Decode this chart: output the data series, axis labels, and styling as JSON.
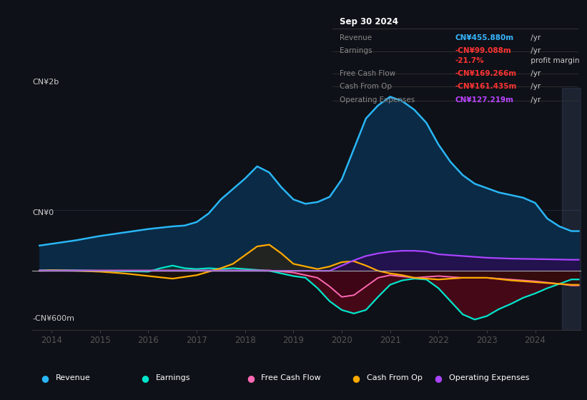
{
  "background_color": "#0e1117",
  "plot_bg_color": "#0e1117",
  "title_box": {
    "date": "Sep 30 2024",
    "rows": [
      {
        "label": "Revenue",
        "value": "CN¥455.880m",
        "value_color": "#38b6ff",
        "suffix": " /yr"
      },
      {
        "label": "Earnings",
        "value": "-CN¥99.088m",
        "value_color": "#ff3333",
        "suffix": " /yr"
      },
      {
        "label": "",
        "value": "-21.7%",
        "value_color": "#ff3333",
        "suffix": " profit margin"
      },
      {
        "label": "Free Cash Flow",
        "value": "-CN¥169.266m",
        "value_color": "#ff3333",
        "suffix": " /yr"
      },
      {
        "label": "Cash From Op",
        "value": "-CN¥161.435m",
        "value_color": "#ff3333",
        "suffix": " /yr"
      },
      {
        "label": "Operating Expenses",
        "value": "CN¥127.219m",
        "value_color": "#bb44ff",
        "suffix": " /yr"
      }
    ]
  },
  "y_label_top": "CN¥2b",
  "y_label_zero": "CN¥0",
  "y_label_bottom": "-CN¥600m",
  "ylim": [
    -680,
    2100
  ],
  "xlim": [
    2013.6,
    2024.95
  ],
  "x_ticks": [
    2014,
    2015,
    2016,
    2017,
    2018,
    2019,
    2020,
    2021,
    2022,
    2023,
    2024
  ],
  "revenue_color": "#29b6f6",
  "earnings_color": "#00e5cc",
  "fcf_color": "#ff69b4",
  "cashop_color": "#ffaa00",
  "opex_color": "#aa44ff",
  "legend": [
    {
      "label": "Revenue",
      "color": "#29b6f6"
    },
    {
      "label": "Earnings",
      "color": "#00e5cc"
    },
    {
      "label": "Free Cash Flow",
      "color": "#ff69b4"
    },
    {
      "label": "Cash From Op",
      "color": "#ffaa00"
    },
    {
      "label": "Operating Expenses",
      "color": "#aa44ff"
    }
  ],
  "revenue": {
    "x": [
      2013.75,
      2014.0,
      2014.5,
      2015.0,
      2015.5,
      2016.0,
      2016.5,
      2016.75,
      2017.0,
      2017.25,
      2017.5,
      2017.75,
      2018.0,
      2018.25,
      2018.5,
      2018.75,
      2019.0,
      2019.25,
      2019.5,
      2019.75,
      2020.0,
      2020.25,
      2020.5,
      2020.75,
      2021.0,
      2021.25,
      2021.5,
      2021.75,
      2022.0,
      2022.25,
      2022.5,
      2022.75,
      2023.0,
      2023.25,
      2023.5,
      2023.75,
      2024.0,
      2024.25,
      2024.5,
      2024.75,
      2024.9
    ],
    "y": [
      290,
      310,
      350,
      400,
      440,
      480,
      510,
      520,
      560,
      660,
      820,
      940,
      1060,
      1200,
      1130,
      960,
      820,
      770,
      790,
      850,
      1050,
      1400,
      1750,
      1900,
      2000,
      1950,
      1850,
      1700,
      1450,
      1250,
      1100,
      1000,
      950,
      900,
      870,
      840,
      780,
      600,
      510,
      456,
      456
    ]
  },
  "earnings": {
    "x": [
      2013.75,
      2014.0,
      2014.5,
      2015.0,
      2015.5,
      2016.0,
      2016.25,
      2016.5,
      2016.75,
      2017.0,
      2017.25,
      2017.5,
      2017.75,
      2018.0,
      2018.25,
      2018.5,
      2018.75,
      2019.0,
      2019.25,
      2019.5,
      2019.75,
      2020.0,
      2020.25,
      2020.5,
      2020.75,
      2021.0,
      2021.25,
      2021.5,
      2021.75,
      2022.0,
      2022.25,
      2022.5,
      2022.75,
      2023.0,
      2023.25,
      2023.5,
      2023.75,
      2024.0,
      2024.25,
      2024.5,
      2024.75,
      2024.9
    ],
    "y": [
      5,
      8,
      5,
      0,
      -5,
      -10,
      30,
      60,
      30,
      20,
      30,
      20,
      30,
      20,
      10,
      0,
      -30,
      -60,
      -80,
      -200,
      -350,
      -450,
      -490,
      -450,
      -300,
      -160,
      -110,
      -90,
      -100,
      -200,
      -350,
      -500,
      -560,
      -520,
      -440,
      -380,
      -310,
      -260,
      -200,
      -150,
      -99,
      -99
    ]
  },
  "fcf": {
    "x": [
      2013.75,
      2014.0,
      2014.5,
      2015.0,
      2015.5,
      2016.0,
      2016.5,
      2017.0,
      2017.5,
      2018.0,
      2018.5,
      2019.0,
      2019.5,
      2019.75,
      2020.0,
      2020.25,
      2020.5,
      2020.75,
      2021.0,
      2021.5,
      2022.0,
      2022.5,
      2023.0,
      2023.5,
      2024.0,
      2024.5,
      2024.75,
      2024.9
    ],
    "y": [
      5,
      5,
      5,
      5,
      5,
      5,
      5,
      5,
      5,
      5,
      5,
      -20,
      -80,
      -180,
      -300,
      -280,
      -180,
      -80,
      -50,
      -80,
      -60,
      -80,
      -80,
      -100,
      -120,
      -150,
      -169,
      -169
    ]
  },
  "cashop": {
    "x": [
      2013.75,
      2014.0,
      2014.5,
      2015.0,
      2015.5,
      2016.0,
      2016.5,
      2017.0,
      2017.25,
      2017.5,
      2017.75,
      2018.0,
      2018.25,
      2018.5,
      2018.75,
      2019.0,
      2019.5,
      2019.75,
      2020.0,
      2020.25,
      2020.5,
      2020.75,
      2021.0,
      2021.25,
      2021.5,
      2022.0,
      2022.5,
      2023.0,
      2023.5,
      2024.0,
      2024.5,
      2024.75,
      2024.9
    ],
    "y": [
      0,
      5,
      0,
      -10,
      -30,
      -60,
      -90,
      -50,
      -10,
      30,
      80,
      180,
      280,
      300,
      200,
      80,
      20,
      50,
      100,
      110,
      60,
      0,
      -30,
      -50,
      -80,
      -100,
      -80,
      -80,
      -110,
      -130,
      -150,
      -161,
      -161
    ]
  },
  "opex": {
    "x": [
      2013.75,
      2014.0,
      2014.5,
      2015.0,
      2015.5,
      2016.0,
      2016.5,
      2017.0,
      2017.5,
      2018.0,
      2018.5,
      2019.0,
      2019.5,
      2019.75,
      2020.0,
      2020.25,
      2020.5,
      2020.75,
      2021.0,
      2021.25,
      2021.5,
      2021.75,
      2022.0,
      2022.5,
      2023.0,
      2023.5,
      2024.0,
      2024.5,
      2024.75,
      2024.9
    ],
    "y": [
      0,
      0,
      0,
      0,
      0,
      0,
      0,
      0,
      0,
      0,
      0,
      0,
      0,
      0,
      60,
      120,
      170,
      200,
      220,
      230,
      230,
      220,
      190,
      170,
      150,
      140,
      135,
      130,
      127,
      127
    ]
  }
}
